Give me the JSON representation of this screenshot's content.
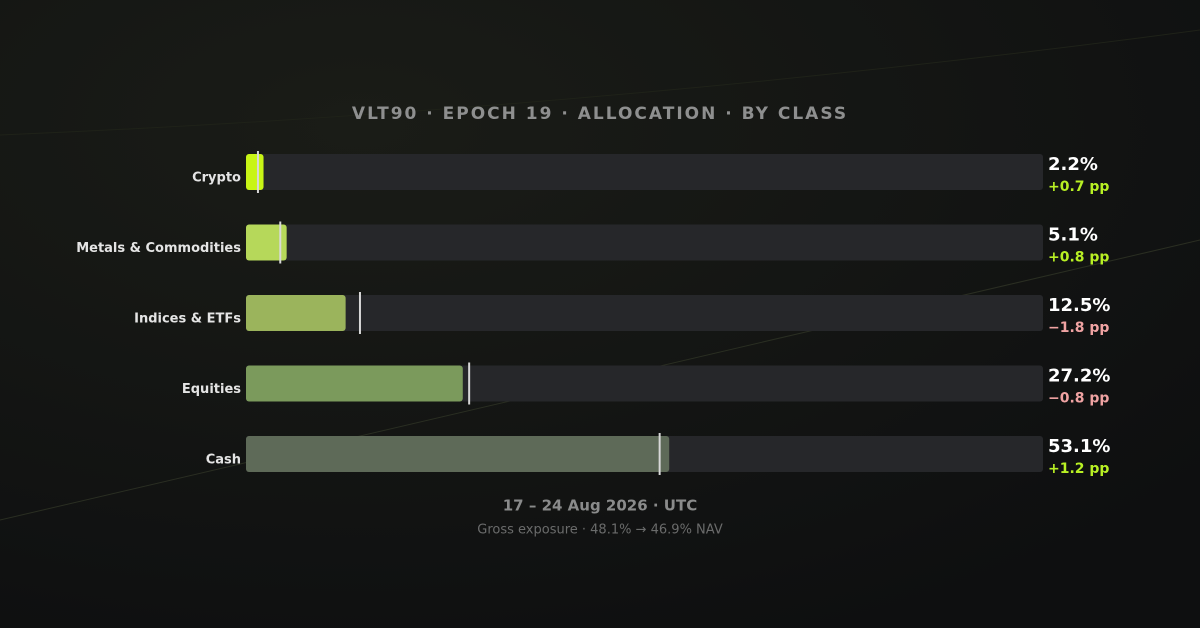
{
  "chart_data": {
    "type": "bar",
    "title": "VLT90 · EPOCH 19 · ALLOCATION · BY CLASS",
    "categories": [
      "Crypto",
      "Metals & Commodities",
      "Indices & ETFs",
      "Equities",
      "Cash"
    ],
    "values": [
      2.2,
      5.1,
      12.5,
      27.2,
      53.1
    ],
    "value_labels": [
      "2.2%",
      "5.1%",
      "12.5%",
      "27.2%",
      "53.1%"
    ],
    "changes": [
      0.7,
      0.8,
      -1.8,
      -0.8,
      1.2
    ],
    "change_labels": [
      "+0.7 pp",
      "+0.8 pp",
      "−1.8 pp",
      "−0.8 pp",
      "+1.2 pp"
    ],
    "colors": [
      "#c8f516",
      "#b6d85a",
      "#9bb45c",
      "#7b9a5c",
      "#5e6a58"
    ],
    "positive_color": "#b8f024",
    "negative_color": "#f0a3a3",
    "xlim": [
      0,
      100
    ],
    "date_range": "17 – 24 Aug 2026 · UTC",
    "note": "Gross exposure · 48.1% → 46.9% NAV"
  }
}
